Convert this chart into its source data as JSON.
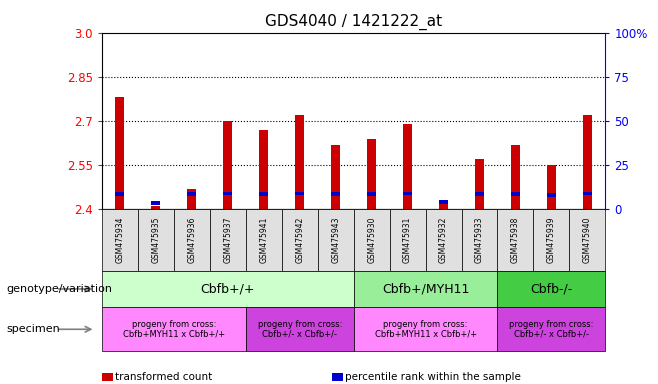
{
  "title": "GDS4040 / 1421222_at",
  "samples": [
    "GSM475934",
    "GSM475935",
    "GSM475936",
    "GSM475937",
    "GSM475941",
    "GSM475942",
    "GSM475943",
    "GSM475930",
    "GSM475931",
    "GSM475932",
    "GSM475933",
    "GSM475938",
    "GSM475939",
    "GSM475940"
  ],
  "transformed_count": [
    2.78,
    2.41,
    2.47,
    2.7,
    2.67,
    2.72,
    2.62,
    2.64,
    2.69,
    2.43,
    2.57,
    2.62,
    2.55,
    2.72
  ],
  "percentile_rank_val": [
    10,
    3,
    8,
    10,
    8,
    10,
    8,
    8,
    10,
    4,
    8,
    8,
    6,
    10
  ],
  "percentile_rank_pos": [
    2.446,
    2.415,
    2.445,
    2.447,
    2.445,
    2.447,
    2.445,
    2.445,
    2.447,
    2.418,
    2.445,
    2.445,
    2.442,
    2.447
  ],
  "bar_bottom": 2.4,
  "ylim_min": 2.4,
  "ylim_max": 3.0,
  "yticks": [
    2.4,
    2.55,
    2.7,
    2.85,
    3.0
  ],
  "y2ticks": [
    0,
    25,
    50,
    75,
    100
  ],
  "y2labels": [
    "0",
    "25",
    "50",
    "75",
    "100%"
  ],
  "bar_color_red": "#cc0000",
  "bar_color_blue": "#0000cc",
  "bar_width": 0.25,
  "genotype_groups": [
    {
      "label": "Cbfb+/+",
      "start": 0,
      "end": 7,
      "color": "#ccffcc"
    },
    {
      "label": "Cbfb+/MYH11",
      "start": 7,
      "end": 11,
      "color": "#99ee99"
    },
    {
      "label": "Cbfb-/-",
      "start": 11,
      "end": 14,
      "color": "#44cc44"
    }
  ],
  "specimen_groups": [
    {
      "label": "progeny from cross:\nCbfb+MYH11 x Cbfb+/+",
      "start": 0,
      "end": 4,
      "color": "#ff88ff"
    },
    {
      "label": "progeny from cross:\nCbfb+/- x Cbfb+/-",
      "start": 4,
      "end": 7,
      "color": "#cc44dd"
    },
    {
      "label": "progeny from cross:\nCbfb+MYH11 x Cbfb+/+",
      "start": 7,
      "end": 11,
      "color": "#ff88ff"
    },
    {
      "label": "progeny from cross:\nCbfb+/- x Cbfb+/-",
      "start": 11,
      "end": 14,
      "color": "#cc44dd"
    }
  ],
  "left_label_geno": "genotype/variation",
  "left_label_spec": "specimen",
  "legend_items": [
    {
      "label": "transformed count",
      "color": "#cc0000"
    },
    {
      "label": "percentile rank within the sample",
      "color": "#0000cc"
    }
  ],
  "geno_sep": [
    7,
    11
  ],
  "spec_sep": [
    4,
    7,
    11
  ]
}
